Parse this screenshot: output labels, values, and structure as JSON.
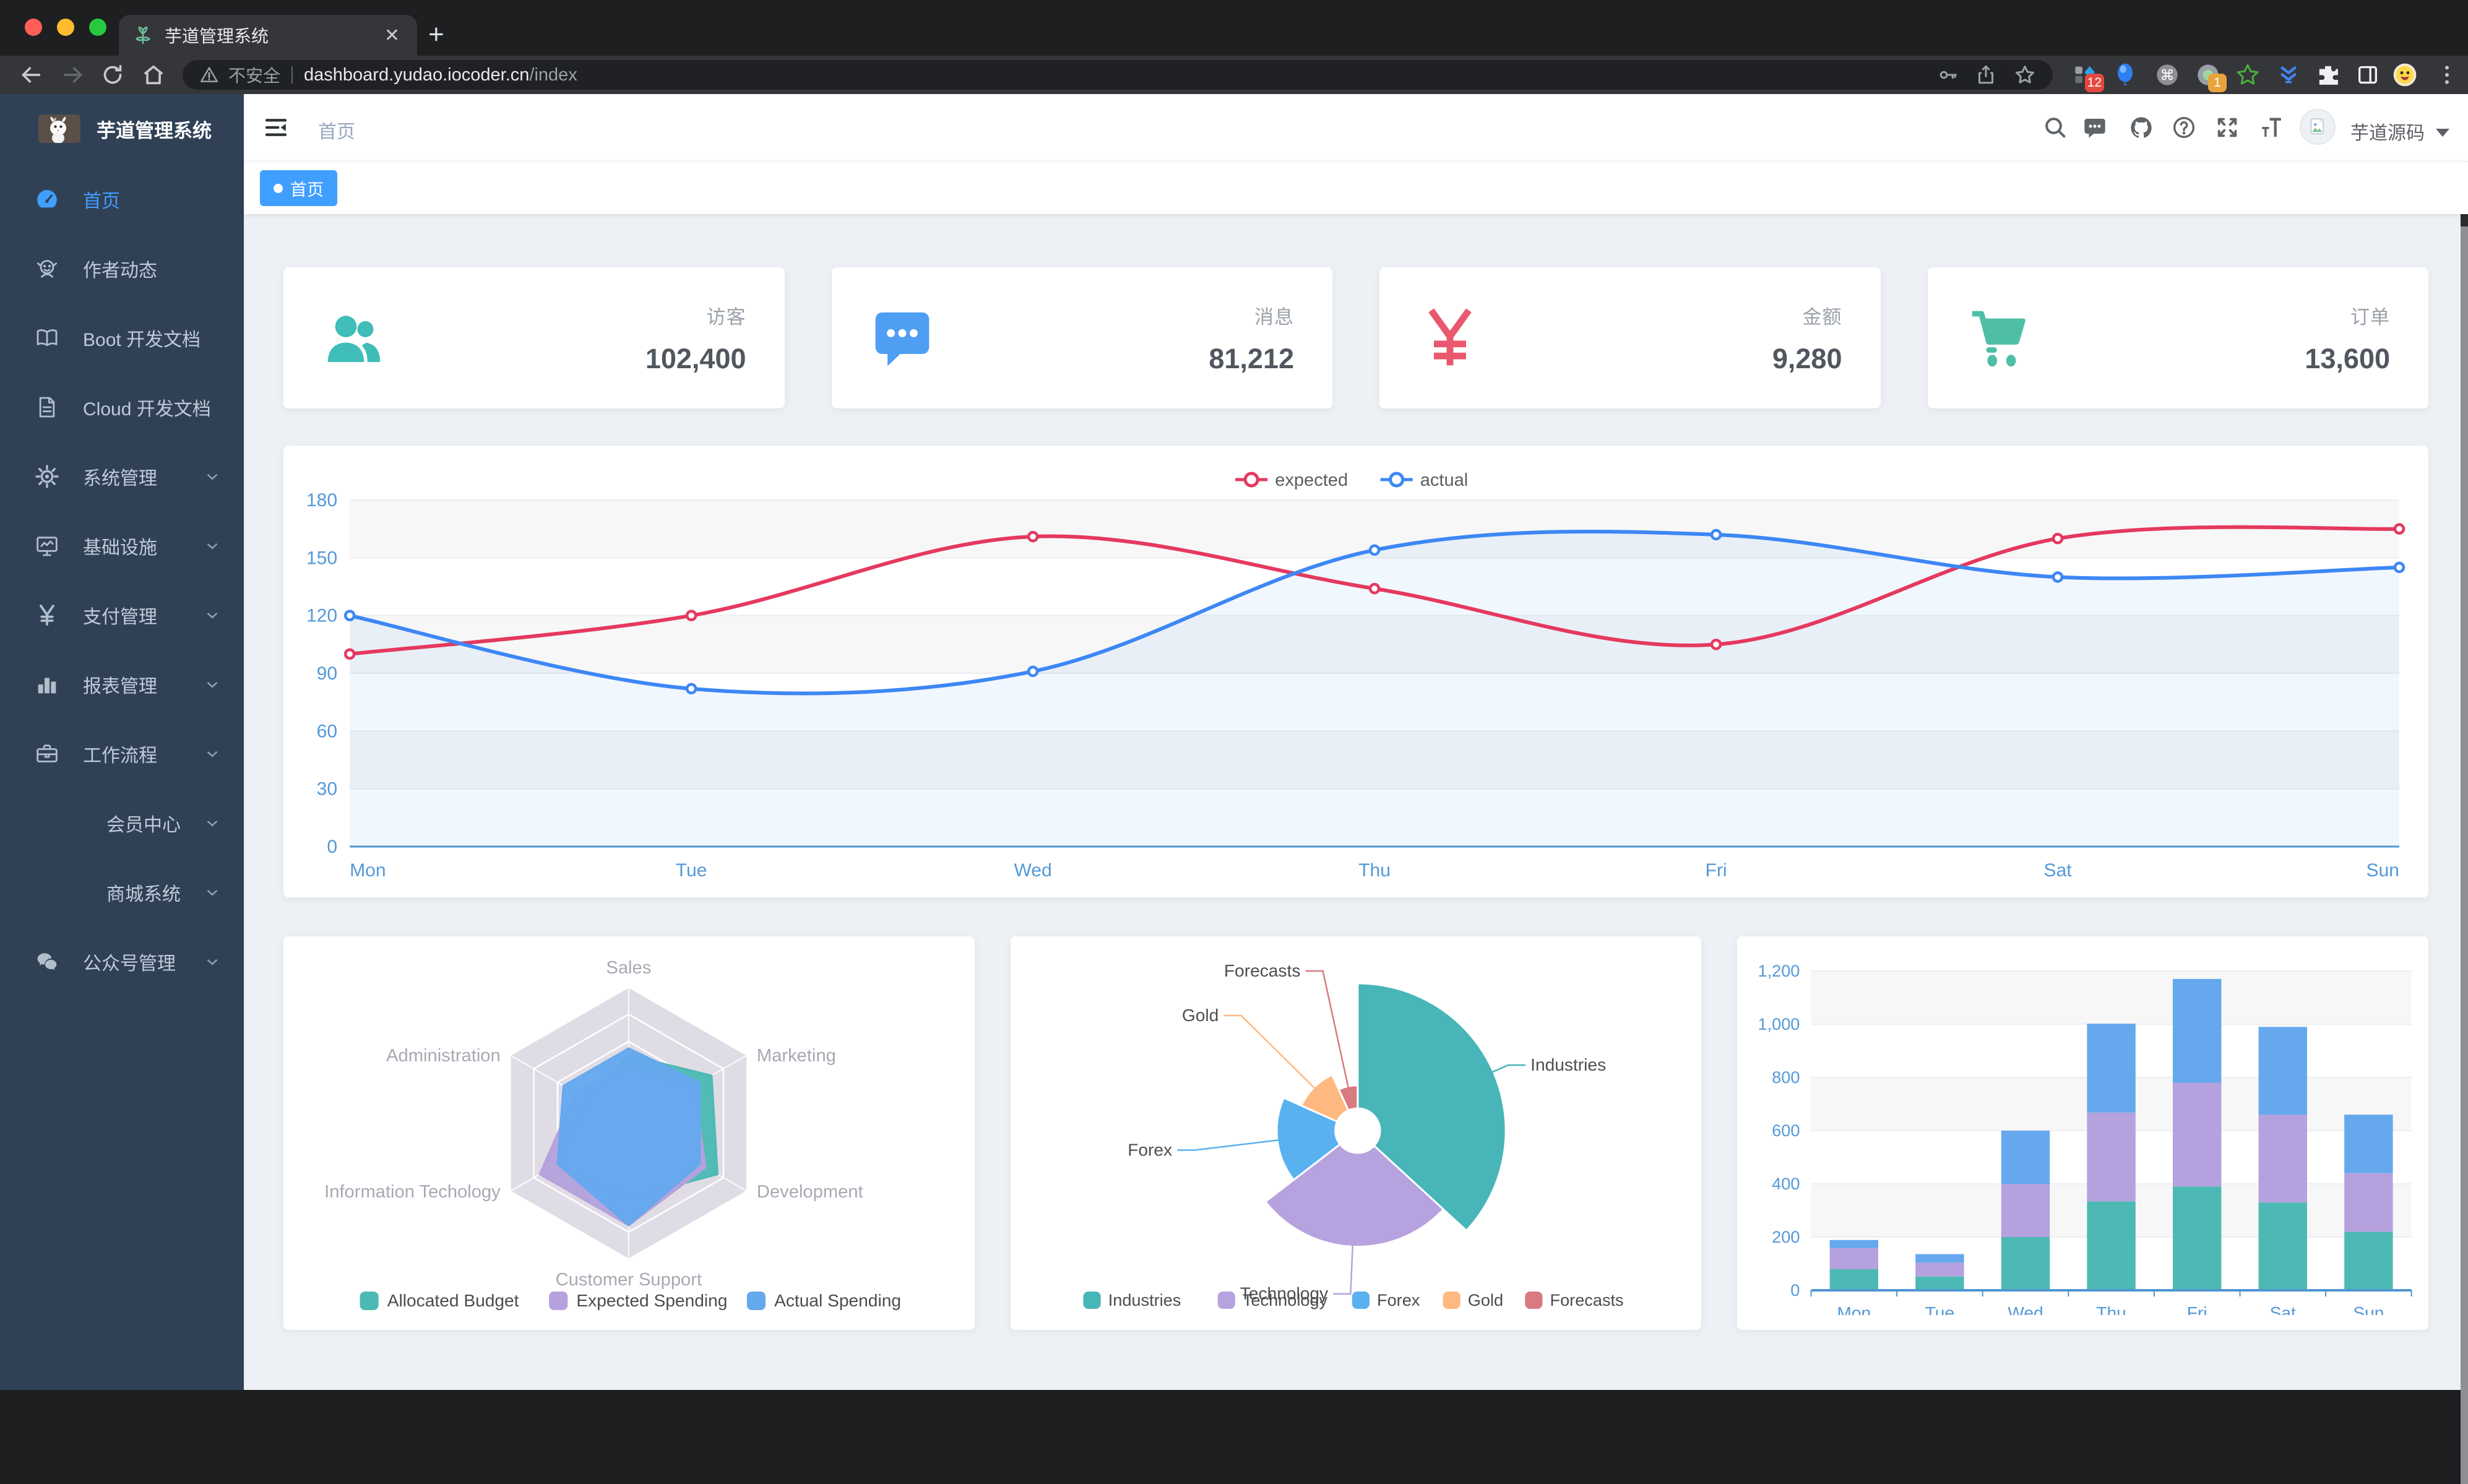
{
  "browser": {
    "tab": {
      "title": "芋道管理系统"
    },
    "url": {
      "insecure_label": "不安全",
      "host": "dashboard.yudao.iocoder.cn",
      "path": "/index"
    },
    "extensions": {
      "badge_a": "12",
      "badge_b": "1"
    }
  },
  "sidebar": {
    "logo_title": "芋道管理系统",
    "items": [
      {
        "label": "首页",
        "icon": "dashboard",
        "active": true,
        "arrow": false,
        "indent": false
      },
      {
        "label": "作者动态",
        "icon": "people",
        "active": false,
        "arrow": false,
        "indent": false
      },
      {
        "label": "Boot 开发文档",
        "icon": "book",
        "active": false,
        "arrow": false,
        "indent": false
      },
      {
        "label": "Cloud 开发文档",
        "icon": "document",
        "active": false,
        "arrow": false,
        "indent": false
      },
      {
        "label": "系统管理",
        "icon": "gear",
        "active": false,
        "arrow": true,
        "indent": false
      },
      {
        "label": "基础设施",
        "icon": "monitor",
        "active": false,
        "arrow": true,
        "indent": false
      },
      {
        "label": "支付管理",
        "icon": "yen",
        "active": false,
        "arrow": true,
        "indent": false
      },
      {
        "label": "报表管理",
        "icon": "chart",
        "active": false,
        "arrow": true,
        "indent": false
      },
      {
        "label": "工作流程",
        "icon": "toolbox",
        "active": false,
        "arrow": true,
        "indent": false
      },
      {
        "label": "会员中心",
        "icon": null,
        "active": false,
        "arrow": true,
        "indent": true
      },
      {
        "label": "商城系统",
        "icon": null,
        "active": false,
        "arrow": true,
        "indent": true
      },
      {
        "label": "公众号管理",
        "icon": "wechat",
        "active": false,
        "arrow": true,
        "indent": false
      }
    ]
  },
  "header": {
    "breadcrumb": "首页",
    "username": "芋道源码"
  },
  "tags": {
    "active_tag": "首页"
  },
  "stats": [
    {
      "label": "访客",
      "value": "102,400",
      "icon": "people-group",
      "color": "#3fbdb8"
    },
    {
      "label": "消息",
      "value": "81,212",
      "icon": "message",
      "color": "#4e9ef3"
    },
    {
      "label": "金额",
      "value": "9,280",
      "icon": "money",
      "color": "#e9586e"
    },
    {
      "label": "订单",
      "value": "13,600",
      "icon": "cart",
      "color": "#4ebfa5"
    }
  ],
  "chart_data": [
    {
      "id": "line",
      "type": "line",
      "x": [
        "Mon",
        "Tue",
        "Wed",
        "Thu",
        "Fri",
        "Sat",
        "Sun"
      ],
      "series": [
        {
          "name": "expected",
          "color": "#e5395f",
          "values": [
            100,
            120,
            161,
            134,
            105,
            160,
            165
          ]
        },
        {
          "name": "actual",
          "color": "#3d87f5",
          "values": [
            120,
            82,
            91,
            154,
            162,
            140,
            145
          ]
        }
      ],
      "ylim": [
        0,
        180
      ],
      "yticks": [
        0,
        30,
        60,
        90,
        120,
        150,
        180
      ],
      "grid": true,
      "legend_position": "top"
    },
    {
      "id": "radar",
      "type": "radar",
      "indicators": [
        {
          "name": "Sales",
          "max": 10000
        },
        {
          "name": "Administration",
          "max": 20000
        },
        {
          "name": "Information Techology",
          "max": 20000
        },
        {
          "name": "Customer Support",
          "max": 20000
        },
        {
          "name": "Development",
          "max": 20000
        },
        {
          "name": "Marketing",
          "max": 20000
        }
      ],
      "series": [
        {
          "name": "Allocated Budget",
          "color": "#4cb9b4",
          "values": [
            5000,
            7000,
            12000,
            11000,
            15000,
            14000
          ]
        },
        {
          "name": "Expected Spending",
          "color": "#b4a1dd",
          "values": [
            4000,
            9000,
            15000,
            15000,
            13000,
            11000
          ]
        },
        {
          "name": "Actual Spending",
          "color": "#65a8ee",
          "values": [
            5500,
            11000,
            12000,
            15000,
            12000,
            12000
          ]
        }
      ],
      "rings": 5,
      "legend_position": "bottom"
    },
    {
      "id": "pie",
      "type": "pie",
      "rose": true,
      "items": [
        {
          "name": "Industries",
          "value": 320,
          "color": "#48b5b8"
        },
        {
          "name": "Technology",
          "value": 240,
          "color": "#b6a2de"
        },
        {
          "name": "Forex",
          "value": 149,
          "color": "#5ab1ef"
        },
        {
          "name": "Gold",
          "value": 100,
          "color": "#ffb980"
        },
        {
          "name": "Forecasts",
          "value": 59,
          "color": "#d87a80"
        }
      ],
      "legend_position": "bottom"
    },
    {
      "id": "bar",
      "type": "bar",
      "stacked": true,
      "categories": [
        "Mon",
        "Tue",
        "Wed",
        "Thu",
        "Fri",
        "Sat",
        "Sun"
      ],
      "series": [
        {
          "color": "#4cb9b4",
          "values": [
            79,
            52,
            200,
            334,
            390,
            330,
            220
          ]
        },
        {
          "color": "#b4a1dd",
          "values": [
            80,
            52,
            200,
            334,
            390,
            330,
            220
          ]
        },
        {
          "color": "#65a8ee",
          "values": [
            30,
            32,
            200,
            334,
            390,
            330,
            220
          ]
        }
      ],
      "ylim": [
        0,
        1200
      ],
      "ytick_labels": [
        "0",
        "200",
        "400",
        "600",
        "800",
        "1,000",
        "1,200"
      ],
      "grid": true
    }
  ]
}
